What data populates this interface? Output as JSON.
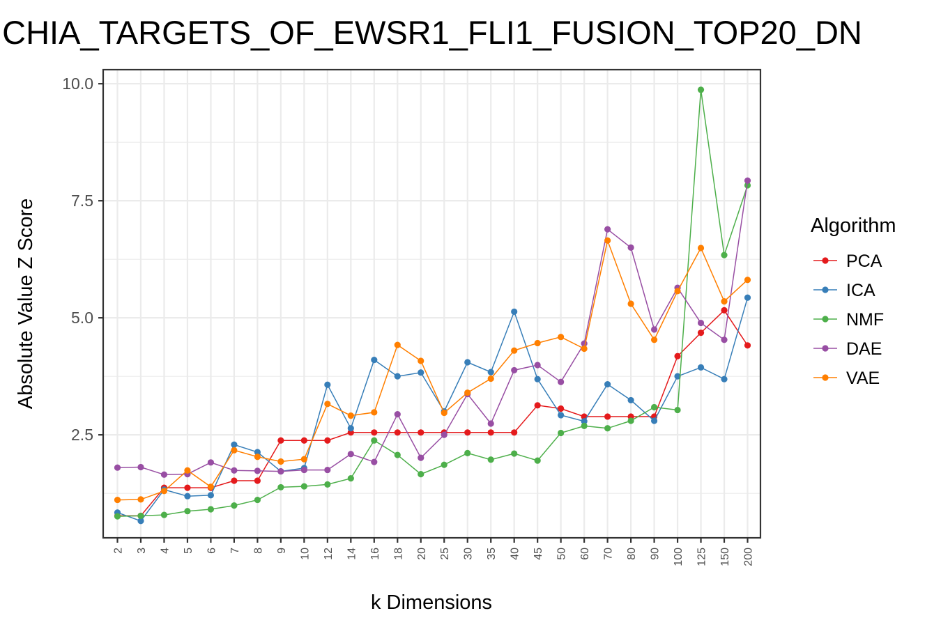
{
  "chart_data": {
    "type": "line",
    "title": "CHIA_TARGETS_OF_EWSR1_FLI1_FUSION_TOP20_DN",
    "xlabel": "k Dimensions",
    "ylabel": "Absolute Value Z Score",
    "categories": [
      "2",
      "3",
      "4",
      "5",
      "6",
      "7",
      "8",
      "9",
      "10",
      "12",
      "14",
      "16",
      "18",
      "20",
      "25",
      "30",
      "35",
      "40",
      "45",
      "50",
      "60",
      "70",
      "80",
      "90",
      "100",
      "125",
      "150",
      "200"
    ],
    "ylim": [
      0.3,
      10.3
    ],
    "yticks": [
      2.5,
      5.0,
      7.5,
      10.0
    ],
    "ytick_labels": [
      "2.5",
      "5.0",
      "7.5",
      "10.0"
    ],
    "grid": true,
    "legend": {
      "title": "Algorithm",
      "position": "right"
    },
    "series": [
      {
        "name": "PCA",
        "color": "#E41A1C",
        "values": [
          0.77,
          0.77,
          1.37,
          1.37,
          1.37,
          1.52,
          1.52,
          2.38,
          2.38,
          2.38,
          2.55,
          2.55,
          2.55,
          2.55,
          2.55,
          2.55,
          2.55,
          2.55,
          3.13,
          3.06,
          2.89,
          2.89,
          2.89,
          2.89,
          4.18,
          4.68,
          5.16,
          4.41
        ]
      },
      {
        "name": "ICA",
        "color": "#377EB8",
        "values": [
          0.84,
          0.66,
          1.33,
          1.19,
          1.21,
          2.29,
          2.13,
          1.72,
          1.79,
          3.57,
          2.64,
          4.1,
          3.75,
          3.83,
          3.0,
          4.05,
          3.84,
          5.13,
          3.69,
          2.92,
          2.79,
          3.58,
          3.24,
          2.8,
          3.75,
          3.94,
          3.69,
          5.43
        ]
      },
      {
        "name": "NMF",
        "color": "#4DAF4A",
        "values": [
          0.76,
          0.77,
          0.79,
          0.87,
          0.91,
          0.99,
          1.11,
          1.38,
          1.4,
          1.44,
          1.57,
          2.38,
          2.07,
          1.66,
          1.86,
          2.11,
          1.97,
          2.1,
          1.95,
          2.54,
          2.69,
          2.64,
          2.8,
          3.09,
          3.03,
          9.87,
          6.34,
          7.83
        ]
      },
      {
        "name": "DAE",
        "color": "#984EA3",
        "values": [
          1.8,
          1.81,
          1.65,
          1.66,
          1.91,
          1.74,
          1.73,
          1.72,
          1.75,
          1.75,
          2.09,
          1.92,
          2.94,
          2.01,
          2.5,
          3.37,
          2.74,
          3.88,
          3.99,
          3.63,
          4.45,
          6.89,
          6.5,
          4.75,
          5.64,
          4.89,
          4.53,
          7.93
        ]
      },
      {
        "name": "VAE",
        "color": "#FF7F00",
        "values": [
          1.11,
          1.12,
          1.3,
          1.74,
          1.39,
          2.17,
          2.03,
          1.93,
          1.98,
          3.16,
          2.91,
          2.98,
          4.42,
          4.08,
          2.97,
          3.4,
          3.7,
          4.3,
          4.46,
          4.59,
          4.34,
          6.65,
          5.3,
          4.53,
          5.57,
          6.49,
          5.35,
          5.81
        ]
      }
    ]
  }
}
